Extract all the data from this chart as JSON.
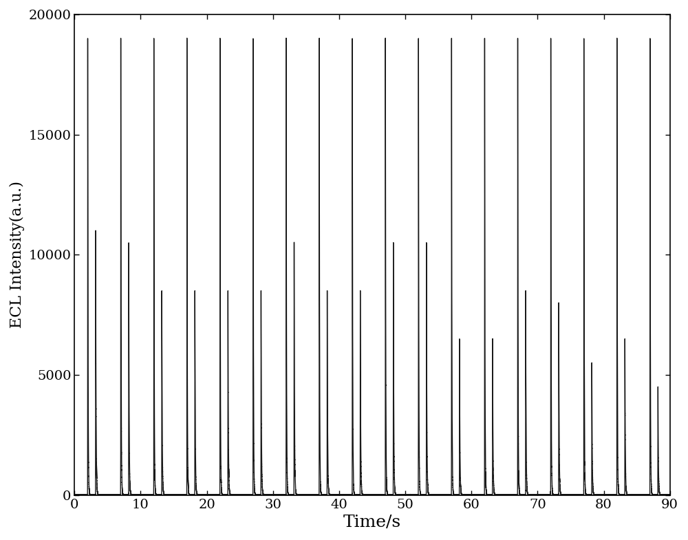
{
  "xlabel": "Time/s",
  "ylabel": "ECL Intensity(a.u.)",
  "xlim": [
    0,
    90
  ],
  "ylim": [
    0,
    20000
  ],
  "xticks": [
    0,
    10,
    20,
    30,
    40,
    50,
    60,
    70,
    80,
    90
  ],
  "yticks": [
    0,
    5000,
    10000,
    15000,
    20000
  ],
  "peak_pairs": [
    [
      2.0,
      3.2
    ],
    [
      7.0,
      8.2
    ],
    [
      12.0,
      13.2
    ],
    [
      17.0,
      18.2
    ],
    [
      22.0,
      23.2
    ],
    [
      27.0,
      28.2
    ],
    [
      32.0,
      33.2
    ],
    [
      37.0,
      38.2
    ],
    [
      42.0,
      43.2
    ],
    [
      47.0,
      48.2
    ],
    [
      52.0,
      53.2
    ],
    [
      57.0,
      58.2
    ],
    [
      62.0,
      63.2
    ],
    [
      67.0,
      68.2
    ],
    [
      72.0,
      73.2
    ],
    [
      77.0,
      78.2
    ],
    [
      82.0,
      83.2
    ],
    [
      87.0,
      88.2
    ]
  ],
  "main_peak_heights": [
    19000,
    19000,
    19000,
    19000,
    19000,
    19000,
    19000,
    19000,
    19000,
    19000,
    19000,
    19000,
    19000,
    19000,
    19000,
    19000,
    19000,
    19000
  ],
  "secondary_peak_heights": [
    11000,
    10500,
    8500,
    8500,
    8500,
    8500,
    10500,
    8500,
    8500,
    10500,
    10500,
    6500,
    6500,
    8500,
    8000,
    5500,
    6500,
    4500
  ],
  "baseline": 0,
  "background_color": "#ffffff",
  "line_color": "#1a1a1a",
  "line_width": 1.0,
  "xlabel_fontsize": 18,
  "ylabel_fontsize": 16,
  "tick_fontsize": 14,
  "spine_linewidth": 1.2
}
